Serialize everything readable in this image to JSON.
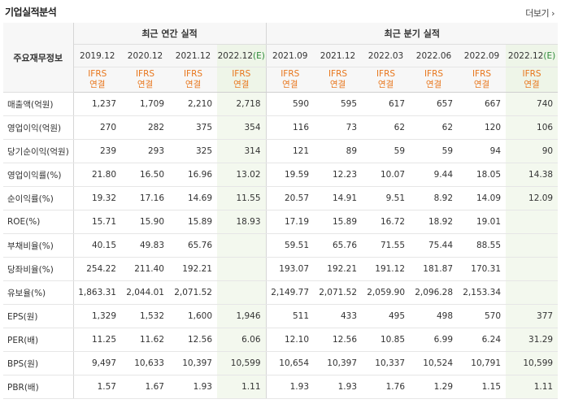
{
  "header": {
    "title": "기업실적분석",
    "more": "더보기"
  },
  "table": {
    "row_header": "주요재무정보",
    "group_annual": "최근 연간 실적",
    "group_quarter": "최근 분기 실적",
    "annual_periods": [
      "2019.12",
      "2020.12",
      "2021.12",
      "2022.12"
    ],
    "annual_est": "(E)",
    "quarter_periods": [
      "2021.09",
      "2021.12",
      "2022.03",
      "2022.06",
      "2022.09",
      "2022.12"
    ],
    "quarter_est": "(E)",
    "basis_top": "IFRS",
    "basis_bottom": "연결",
    "rows": [
      {
        "label": "매출액(억원)",
        "values": [
          "1,237",
          "1,709",
          "2,210",
          "2,718",
          "590",
          "595",
          "617",
          "657",
          "667",
          "740"
        ]
      },
      {
        "label": "영업이익(억원)",
        "values": [
          "270",
          "282",
          "375",
          "354",
          "116",
          "73",
          "62",
          "62",
          "120",
          "106"
        ]
      },
      {
        "label": "당기순이익(억원)",
        "values": [
          "239",
          "293",
          "325",
          "314",
          "121",
          "89",
          "59",
          "59",
          "94",
          "90"
        ]
      },
      {
        "label": "영업이익률(%)",
        "values": [
          "21.80",
          "16.50",
          "16.96",
          "13.02",
          "19.59",
          "12.23",
          "10.07",
          "9.44",
          "18.05",
          "14.38"
        ]
      },
      {
        "label": "순이익률(%)",
        "values": [
          "19.32",
          "17.16",
          "14.69",
          "11.55",
          "20.57",
          "14.91",
          "9.51",
          "8.92",
          "14.09",
          "12.09"
        ]
      },
      {
        "label": "ROE(%)",
        "values": [
          "15.71",
          "15.90",
          "15.89",
          "18.93",
          "17.19",
          "15.89",
          "16.72",
          "18.92",
          "19.01",
          ""
        ]
      },
      {
        "label": "부채비율(%)",
        "values": [
          "40.15",
          "49.83",
          "65.76",
          "",
          "59.51",
          "65.76",
          "71.55",
          "75.44",
          "88.55",
          ""
        ]
      },
      {
        "label": "당좌비율(%)",
        "values": [
          "254.22",
          "211.40",
          "192.21",
          "",
          "193.07",
          "192.21",
          "191.12",
          "181.87",
          "170.31",
          ""
        ]
      },
      {
        "label": "유보율(%)",
        "values": [
          "1,863.31",
          "2,044.01",
          "2,071.52",
          "",
          "2,149.77",
          "2,071.52",
          "2,059.90",
          "2,096.28",
          "2,153.34",
          ""
        ]
      },
      {
        "label": "EPS(원)",
        "values": [
          "1,329",
          "1,532",
          "1,600",
          "1,946",
          "511",
          "433",
          "495",
          "498",
          "570",
          "377"
        ]
      },
      {
        "label": "PER(배)",
        "values": [
          "11.25",
          "11.62",
          "12.56",
          "6.06",
          "12.10",
          "12.56",
          "10.85",
          "6.99",
          "6.24",
          "31.29"
        ]
      },
      {
        "label": "BPS(원)",
        "values": [
          "9,497",
          "10,633",
          "10,397",
          "10,599",
          "10,654",
          "10,397",
          "10,337",
          "10,524",
          "10,791",
          "10,599"
        ]
      },
      {
        "label": "PBR(배)",
        "values": [
          "1.57",
          "1.67",
          "1.93",
          "1.11",
          "1.93",
          "1.93",
          "1.76",
          "1.29",
          "1.15",
          "1.11"
        ]
      }
    ]
  }
}
